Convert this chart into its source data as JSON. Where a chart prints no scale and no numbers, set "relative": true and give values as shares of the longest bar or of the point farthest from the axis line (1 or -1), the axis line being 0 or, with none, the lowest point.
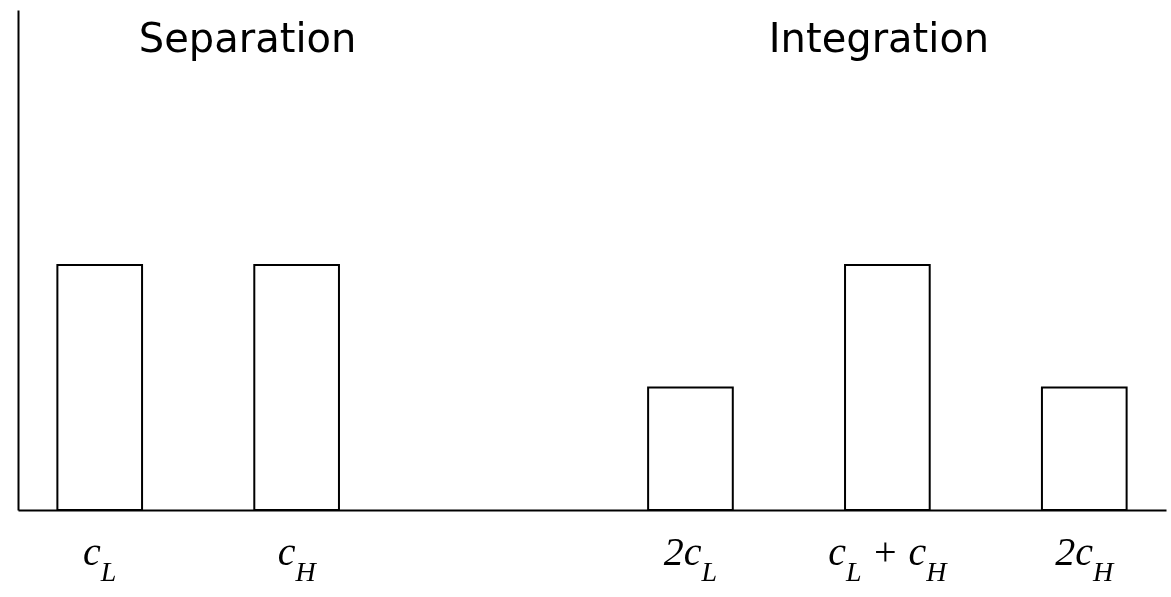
{
  "chart_data": {
    "type": "bar",
    "relative": true,
    "categories": [
      "c$_{L}$",
      "c$_{H}$",
      null,
      "2c$_{L}$",
      "c$_{L}$ + c$_{H}$",
      "2c$_{H}$"
    ],
    "values": [
      1,
      1,
      null,
      0.5,
      1,
      0.5
    ],
    "color": "#ffffff",
    "annotations": [
      "Separation",
      "Integration"
    ],
    "grid": false
  }
}
